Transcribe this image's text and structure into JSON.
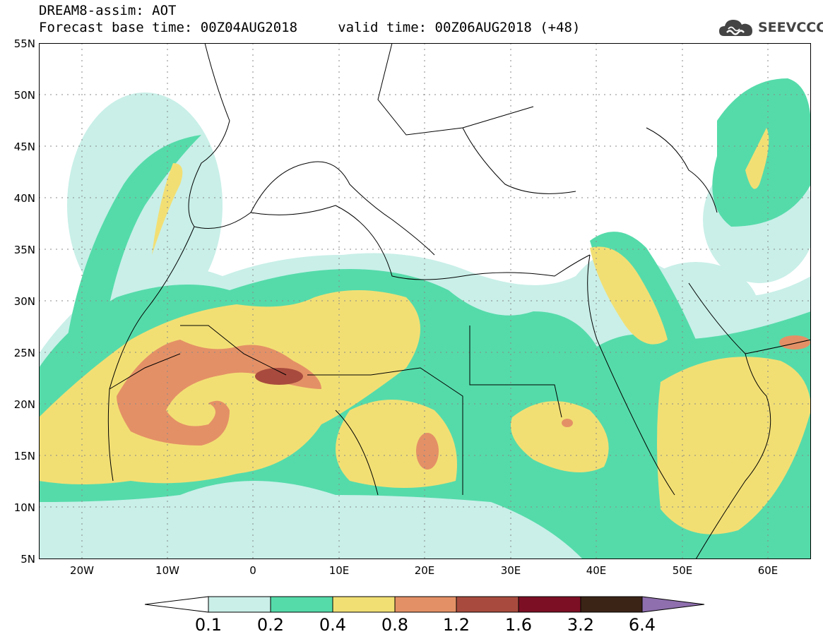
{
  "title": {
    "line1": "DREAM8-assim: AOT",
    "line2": "Forecast base time: 00Z04AUG2018     valid time: 00Z06AUG2018 (+48)"
  },
  "logo": {
    "text": "SEEVCCC",
    "icon": "cloud-icon"
  },
  "map": {
    "lon_range": [
      -25,
      65
    ],
    "lat_range": [
      5,
      55
    ],
    "lat_labels": [
      "55N",
      "50N",
      "45N",
      "40N",
      "35N",
      "30N",
      "25N",
      "20N",
      "15N",
      "10N",
      "5N"
    ],
    "lon_labels": [
      "20W",
      "10W",
      "0",
      "10E",
      "20E",
      "30E",
      "40E",
      "50E",
      "60E"
    ],
    "grid": "dotted"
  },
  "colorbar": {
    "labels": [
      "0.1",
      "0.2",
      "0.4",
      "0.8",
      "1.2",
      "1.6",
      "3.2",
      "6.4"
    ],
    "colors": [
      "#ffffff",
      "#c9efe8",
      "#55dbaa",
      "#f2df74",
      "#e49066",
      "#a84b3e",
      "#7d0f24",
      "#3b2316",
      "#8f6fae"
    ]
  },
  "chart_data": {
    "type": "heatmap",
    "title": "DREAM8-assim: AOT",
    "xlabel": "",
    "ylabel": "",
    "xlim": [
      -25,
      65
    ],
    "ylim": [
      5,
      55
    ],
    "levels": [
      0.1,
      0.2,
      0.4,
      0.8,
      1.2,
      1.6,
      3.2,
      6.4
    ]
  }
}
